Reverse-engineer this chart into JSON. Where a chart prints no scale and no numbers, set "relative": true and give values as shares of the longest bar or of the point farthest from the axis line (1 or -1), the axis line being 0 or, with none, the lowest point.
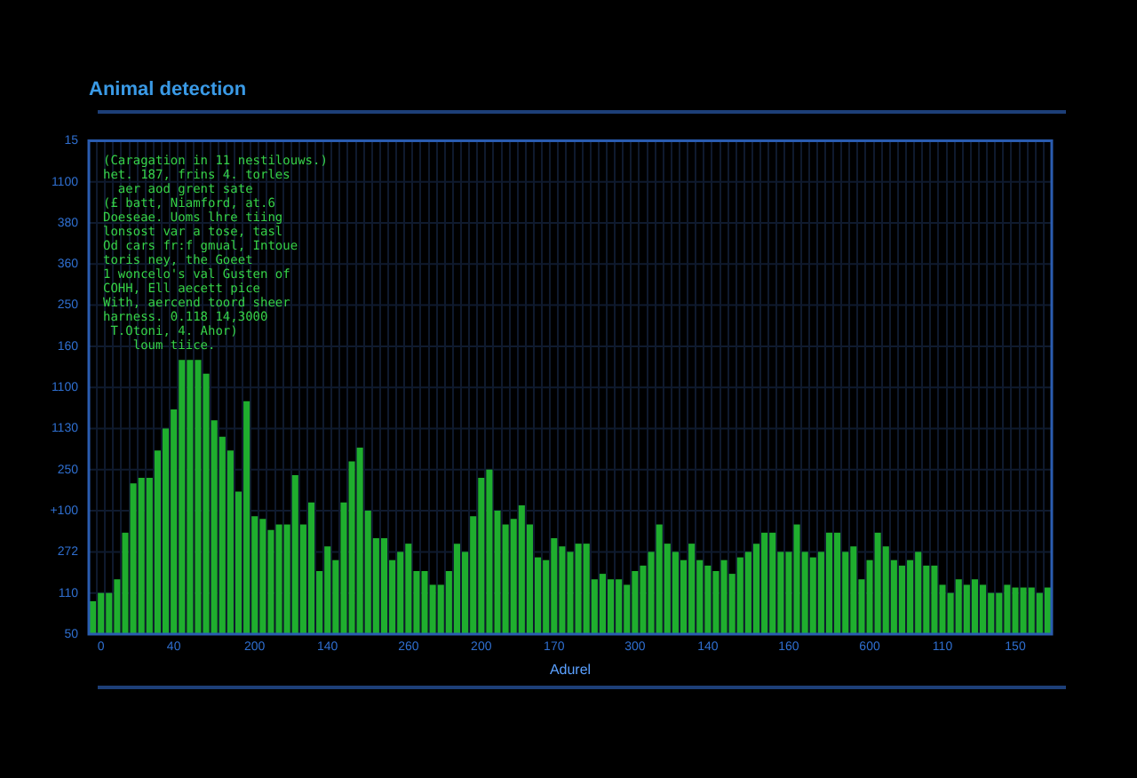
{
  "chart_data": {
    "type": "bar",
    "title": "Animal detection",
    "xlabel": "Adurel",
    "relative": true,
    "categories": [
      null,
      "0",
      null,
      null,
      null,
      null,
      null,
      null,
      null,
      null,
      "40",
      null,
      null,
      null,
      null,
      null,
      null,
      null,
      null,
      null,
      "200",
      null,
      null,
      null,
      null,
      null,
      null,
      null,
      null,
      "140",
      null,
      null,
      null,
      null,
      null,
      null,
      null,
      null,
      null,
      "260",
      null,
      null,
      null,
      null,
      null,
      null,
      null,
      null,
      "200",
      null,
      null,
      null,
      null,
      null,
      null,
      null,
      null,
      "170",
      null,
      null,
      null,
      null,
      null,
      null,
      null,
      null,
      null,
      "300",
      null,
      null,
      null,
      null,
      null,
      null,
      null,
      null,
      "140",
      null,
      null,
      null,
      null,
      null,
      null,
      null,
      null,
      null,
      "160",
      null,
      null,
      null,
      null,
      null,
      null,
      null,
      null,
      null,
      "600",
      null,
      null,
      null,
      null,
      null,
      null,
      null,
      null,
      "110",
      null,
      null,
      null,
      null,
      null,
      null,
      null,
      null,
      "150",
      null,
      null,
      null,
      null
    ],
    "values": [
      0.12,
      0.15,
      0.15,
      0.2,
      0.37,
      0.55,
      0.57,
      0.57,
      0.67,
      0.75,
      0.82,
      1,
      1,
      1,
      0.95,
      0.78,
      0.72,
      0.67,
      0.52,
      0.85,
      0.43,
      0.42,
      0.38,
      0.4,
      0.4,
      0.58,
      0.4,
      0.48,
      0.23,
      0.32,
      0.27,
      0.48,
      0.63,
      0.68,
      0.45,
      0.35,
      0.35,
      0.27,
      0.3,
      0.33,
      0.23,
      0.23,
      0.18,
      0.18,
      0.23,
      0.33,
      0.3,
      0.43,
      0.57,
      0.6,
      0.45,
      0.4,
      0.42,
      0.47,
      0.4,
      0.28,
      0.27,
      0.35,
      0.32,
      0.3,
      0.33,
      0.33,
      0.2,
      0.22,
      0.2,
      0.2,
      0.18,
      0.23,
      0.25,
      0.3,
      0.4,
      0.33,
      0.3,
      0.27,
      0.33,
      0.27,
      0.25,
      0.23,
      0.27,
      0.22,
      0.28,
      0.3,
      0.33,
      0.37,
      0.37,
      0.3,
      0.3,
      0.4,
      0.3,
      0.28,
      0.3,
      0.37,
      0.37,
      0.3,
      0.32,
      0.2,
      0.27,
      0.37,
      0.32,
      0.27,
      0.25,
      0.27,
      0.3,
      0.25,
      0.25,
      0.18,
      0.15,
      0.2,
      0.18,
      0.2,
      0.18,
      0.15,
      0.15,
      0.18,
      0.17,
      0.17,
      0.17,
      0.15,
      0.17
    ],
    "color": "#1fae2e",
    "grid": true,
    "annotations": [
      "(Caragation in 11 nestilouws.)\nhet. 187, frins 4. torles\n  aer aod grent sate\n(£ batt, Niamford, at.6\nDoeseae. Uoms lhre tiing\nlonsost var a tose, tasl\nOd cars fr:f gmual, Intoue\ntoris ney, the Goeet\n1 woncelo's val Gusten of\nCOHH, Ell aecett pice\nWith, aercend toord sheer\nharness. 0.118 14,3000\n T.Otoni, 4. Ahor)\n    loum tiice.",
      "15\n1100\n380\n360\n250\n160\n1100\n1130\n250\n+100\n272\n110\n50"
    ]
  }
}
